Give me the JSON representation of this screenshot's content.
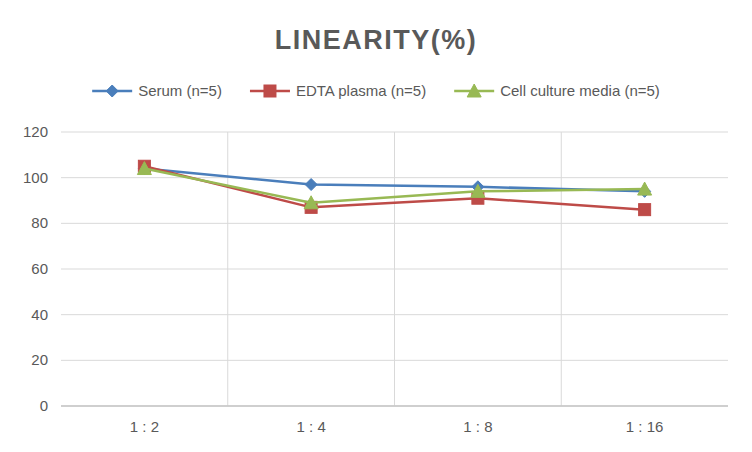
{
  "chart_data": {
    "type": "line",
    "title": "LINEARITY(%)",
    "categories": [
      "1 : 2",
      "1 : 4",
      "1 : 8",
      "1 : 16"
    ],
    "series": [
      {
        "name": "Serum (n=5)",
        "color": "#4a7ebb",
        "marker": "diamond",
        "values": [
          104,
          97,
          96,
          94
        ]
      },
      {
        "name": "EDTA plasma (n=5)",
        "color": "#be4b48",
        "marker": "square",
        "values": [
          105,
          87,
          91,
          86
        ]
      },
      {
        "name": "Cell culture media (n=5)",
        "color": "#98b954",
        "marker": "triangle",
        "values": [
          104,
          89,
          94,
          95
        ]
      }
    ],
    "ylim": [
      0,
      120
    ],
    "yticks": [
      0,
      20,
      40,
      60,
      80,
      100,
      120
    ],
    "grid": true,
    "legend": "top"
  }
}
